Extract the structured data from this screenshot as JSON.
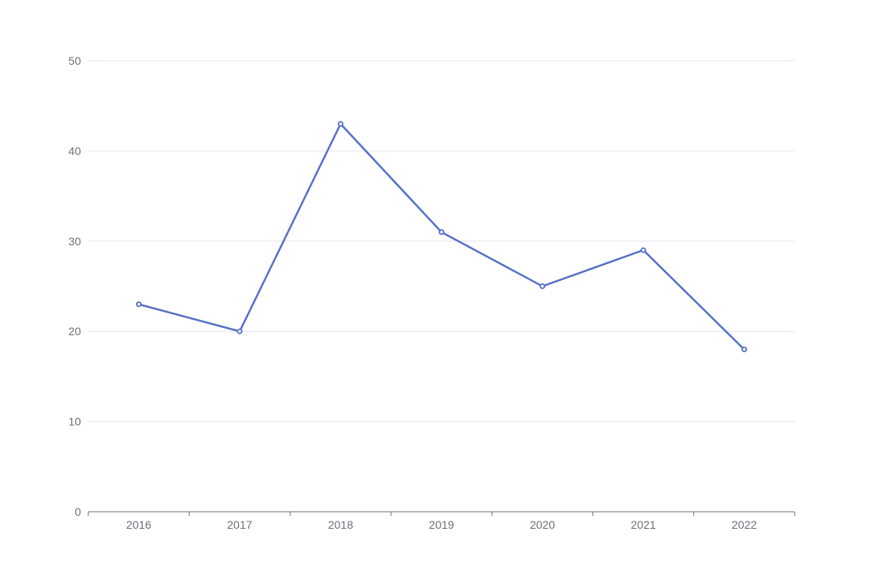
{
  "chart_data": {
    "type": "line",
    "title": "",
    "xlabel": "",
    "ylabel": "",
    "categories": [
      "2016",
      "2017",
      "2018",
      "2019",
      "2020",
      "2021",
      "2022"
    ],
    "series": [
      {
        "values": [
          23,
          20,
          43,
          31,
          25,
          29,
          18
        ],
        "color": "#5470c6"
      }
    ],
    "ylim": [
      0,
      50
    ],
    "yticks": [
      0,
      10,
      20,
      30,
      40,
      50
    ],
    "ytick_labels": [
      "0",
      "10",
      "20",
      "30",
      "40",
      "50"
    ],
    "grid": true,
    "legend": "none",
    "markers": "hollow-circle"
  },
  "colors": {
    "grid": "#e0e6f1",
    "axis": "#6e7079",
    "text": "#6e7079"
  }
}
